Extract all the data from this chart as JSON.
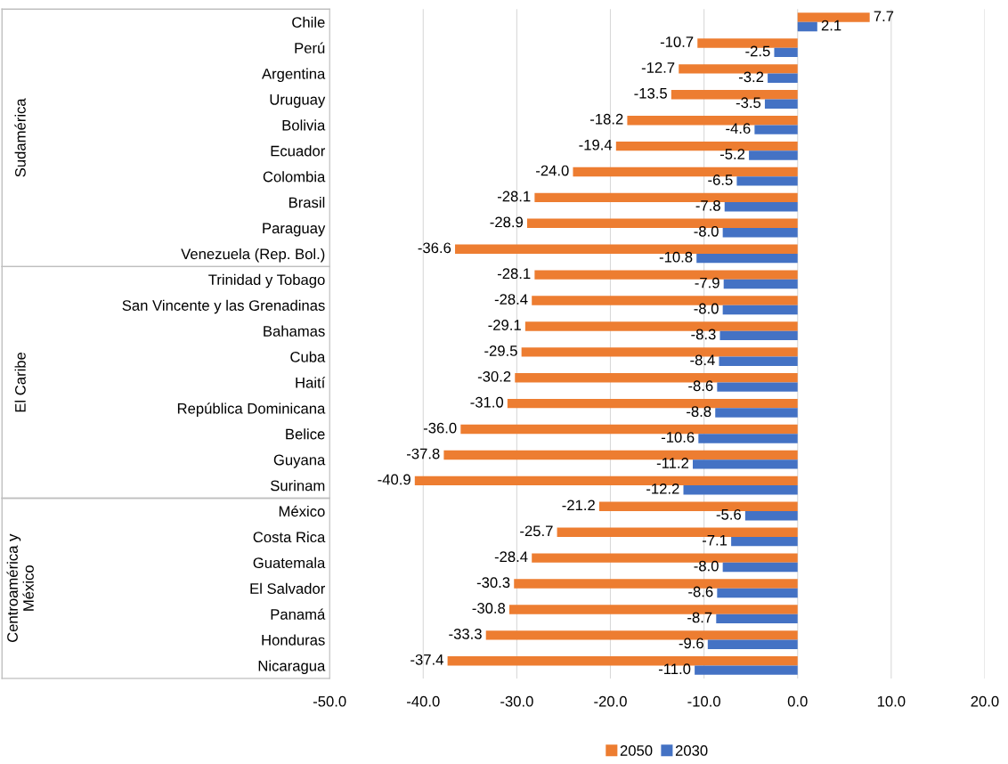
{
  "chart_data": {
    "type": "bar",
    "orientation": "horizontal",
    "categories": [
      "Chile",
      "Perú",
      "Argentina",
      "Uruguay",
      "Bolivia",
      "Ecuador",
      "Colombia",
      "Brasil",
      "Paraguay",
      "Venezuela (Rep. Bol.)",
      "Trinidad y Tobago",
      "San Vincente y las Grenadinas",
      "Bahamas",
      "Cuba",
      "Haití",
      "República Dominicana",
      "Belice",
      "Guyana",
      "Surinam",
      "México",
      "Costa Rica",
      "Guatemala",
      "El Salvador",
      "Panamá",
      "Honduras",
      "Nicaragua"
    ],
    "series": [
      {
        "name": "2050",
        "color": "#ed7d31",
        "values": [
          7.7,
          -10.7,
          -12.7,
          -13.5,
          -18.2,
          -19.4,
          -24.0,
          -28.1,
          -28.9,
          -36.6,
          -28.1,
          -28.4,
          -29.1,
          -29.5,
          -30.2,
          -31.0,
          -36.0,
          -37.8,
          -40.9,
          -21.2,
          -25.7,
          -28.4,
          -30.3,
          -30.8,
          -33.3,
          -37.4
        ],
        "value_labels": [
          "7.7",
          "-10.7",
          "-12.7",
          "-13.5",
          "-18.2",
          "-19.4",
          "-24.0",
          "-28.1",
          "-28.9",
          "-36.6",
          "-28.1",
          "-28.4",
          "-29.1",
          "-29.5",
          "-30.2",
          "-31.0",
          "-36.0",
          "-37.8",
          "-40.9",
          "-21.2",
          "-25.7",
          "-28.4",
          "-30.3",
          "-30.8",
          "-33.3",
          "-37.4"
        ]
      },
      {
        "name": "2030",
        "color": "#4472c4",
        "values": [
          2.1,
          -2.5,
          -3.2,
          -3.5,
          -4.6,
          -5.2,
          -6.5,
          -7.8,
          -8.0,
          -10.8,
          -7.9,
          -8.0,
          -8.3,
          -8.4,
          -8.6,
          -8.8,
          -10.6,
          -11.2,
          -12.2,
          -5.6,
          -7.1,
          -8.0,
          -8.6,
          -8.7,
          -9.6,
          -11.0
        ],
        "value_labels": [
          "2.1",
          "-2.5",
          "-3.2",
          "-3.5",
          "-4.6",
          "-5.2",
          "-6.5",
          "-7.8",
          "-8.0",
          "-10.8",
          "-7.9",
          "-8.0",
          "-8.3",
          "-8.4",
          "-8.6",
          "-8.8",
          "-10.6",
          "-11.2",
          "-12.2",
          "-5.6",
          "-7.1",
          "-8.0",
          "-8.6",
          "-8.7",
          "-9.6",
          "-11.0"
        ]
      }
    ],
    "xlim": [
      -50,
      20
    ],
    "xticks": [
      {
        "value": -50,
        "label": "-50.0"
      },
      {
        "value": -40,
        "label": "-40.0"
      },
      {
        "value": -30,
        "label": "-30.0"
      },
      {
        "value": -20,
        "label": "-20.0"
      },
      {
        "value": -10,
        "label": "-10.0"
      },
      {
        "value": 0,
        "label": "0.0"
      },
      {
        "value": 10,
        "label": "10.0"
      },
      {
        "value": 20,
        "label": "20.0"
      }
    ],
    "grid": "x",
    "legend": "bottom",
    "annotations": [
      "Sudamérica",
      "El Caribe",
      "Centroamérica y\nMéxico"
    ]
  }
}
